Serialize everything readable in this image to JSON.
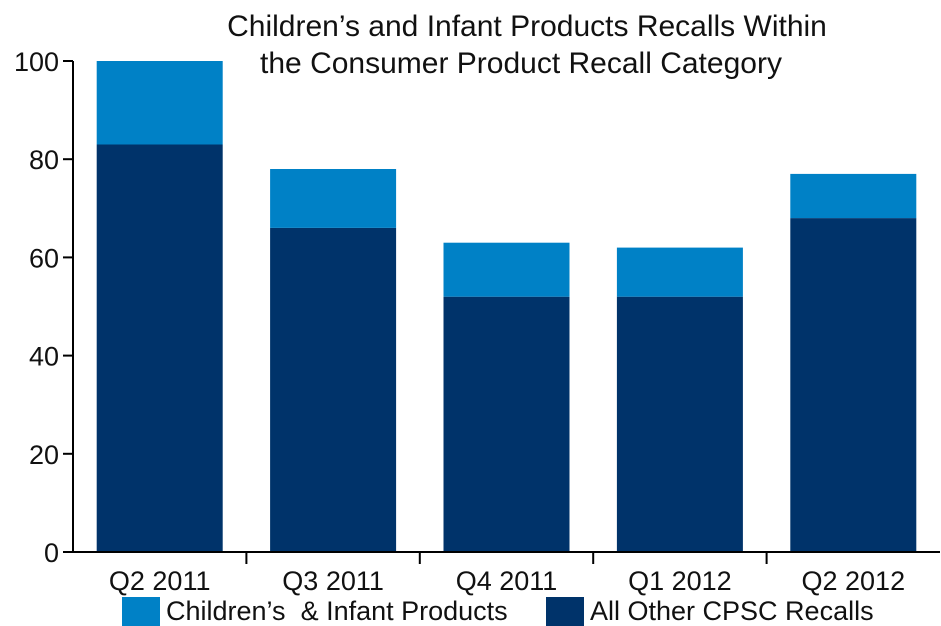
{
  "chart_data": {
    "type": "bar",
    "stacked": true,
    "title": [
      "Children’s and Infant Products Recalls Within",
      "the Consumer Product Recall Category"
    ],
    "categories": [
      "Q2 2011",
      "Q3 2011",
      "Q4 2011",
      "Q1 2012",
      "Q2 2012"
    ],
    "series": [
      {
        "name": "All Other CPSC Recalls",
        "color": "#00336a",
        "values": [
          83,
          66,
          52,
          52,
          68
        ]
      },
      {
        "name": "Children’s  & Infant Products",
        "color": "#0081c6",
        "values": [
          17,
          12,
          11,
          10,
          9
        ]
      }
    ],
    "ylim": [
      0,
      100
    ],
    "yticks": [
      0,
      20,
      40,
      60,
      80,
      100
    ],
    "grid": false,
    "legend": {
      "placement": "bottom",
      "order": [
        "Children’s  & Infant Products",
        "All Other CPSC Recalls"
      ]
    }
  }
}
